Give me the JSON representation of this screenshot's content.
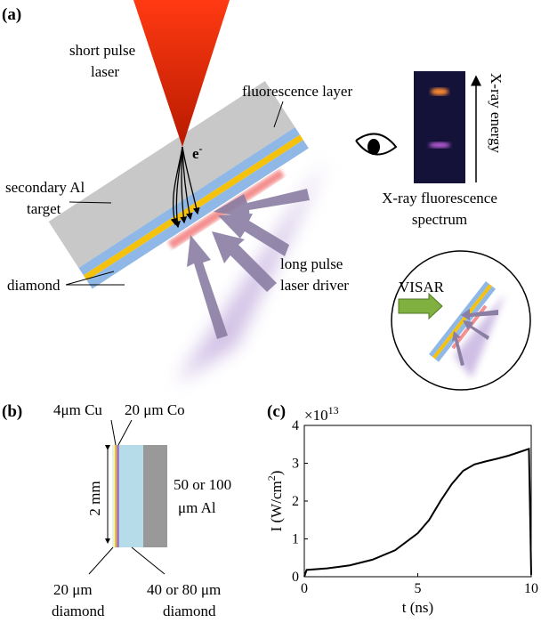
{
  "panel_a": {
    "label": "(a)",
    "short_pulse_laser": [
      "short pulse",
      "laser"
    ],
    "fluorescence_layer": "fluorescence layer",
    "electron": {
      "symbol": "e",
      "charge": "-"
    },
    "secondary_target": [
      "secondary Al",
      "target"
    ],
    "diamond": "diamond",
    "long_pulse": [
      "long pulse",
      "laser driver"
    ],
    "xray_energy": "X-ray energy",
    "spectrum": [
      "X-ray fluorescence",
      "spectrum"
    ],
    "visar": "VISAR"
  },
  "panel_b": {
    "label": "(b)",
    "cu": "4μm Cu",
    "co": "20 μm Co",
    "height": "2 mm",
    "al": [
      "50 or 100",
      "μm Al"
    ],
    "diamond_front": [
      "20 μm",
      "diamond"
    ],
    "diamond_back": [
      "40 or 80 μm",
      "diamond"
    ]
  },
  "chart_data": {
    "type": "line",
    "panel_label": "(c)",
    "multiplier": {
      "base": "×10",
      "exponent": "13"
    },
    "xlabel": "t (ns)",
    "ylabel": [
      "I (W/cm",
      "2",
      ")"
    ],
    "xlim": [
      0,
      10
    ],
    "ylim": [
      0,
      4
    ],
    "xticks": [
      0,
      5,
      10
    ],
    "yticks": [
      0,
      1,
      2,
      3,
      4
    ],
    "series": [
      {
        "color": "#000000",
        "x": [
          0,
          0.1,
          1,
          2,
          3,
          4,
          5,
          5.5,
          6,
          6.5,
          7,
          7.5,
          8,
          8.5,
          9,
          9.5,
          9.9,
          10
        ],
        "values": [
          0,
          0.18,
          0.22,
          0.3,
          0.45,
          0.7,
          1.15,
          1.5,
          2.0,
          2.45,
          2.8,
          2.97,
          3.05,
          3.12,
          3.2,
          3.3,
          3.38,
          0.05
        ]
      }
    ]
  }
}
